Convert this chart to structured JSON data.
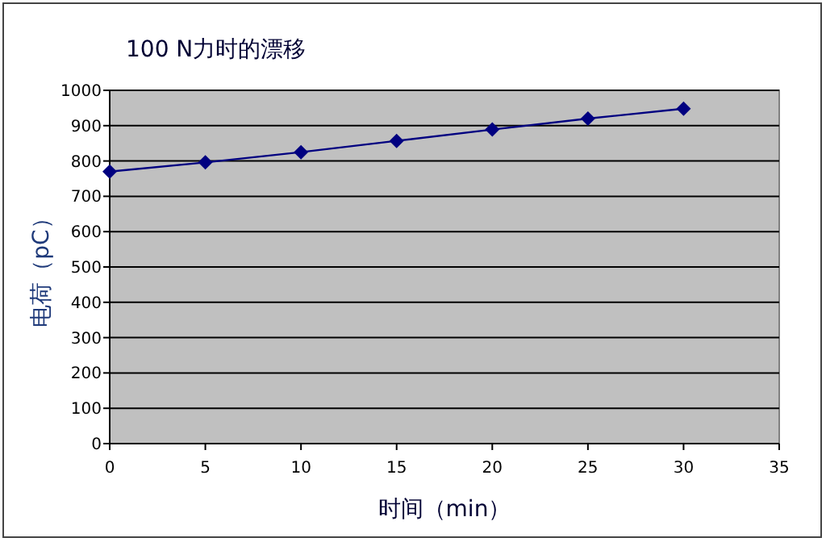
{
  "chart_data": {
    "type": "line",
    "title": "100 N力时的漂移",
    "xlabel": "时间（min）",
    "ylabel": "电荷（pC）",
    "x": [
      0,
      5,
      10,
      15,
      20,
      25,
      30
    ],
    "series": [
      {
        "color": "#000080",
        "values": [
          770,
          796,
          825,
          857,
          889,
          920,
          948
        ]
      }
    ],
    "xlim": [
      0,
      35
    ],
    "ylim": [
      0,
      1000
    ],
    "xticks": [
      0,
      5,
      10,
      15,
      20,
      25,
      30,
      35
    ],
    "yticks": [
      0,
      100,
      200,
      300,
      400,
      500,
      600,
      700,
      800,
      900,
      1000
    ],
    "grid": "y",
    "marker": "diamond",
    "line_style": "solid"
  }
}
